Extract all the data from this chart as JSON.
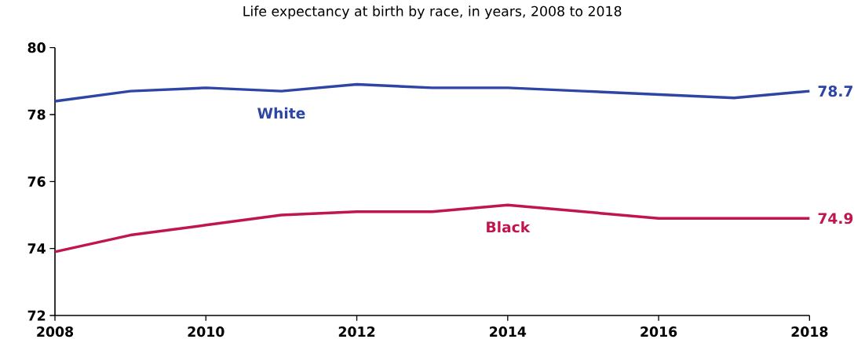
{
  "chart_data": {
    "type": "line",
    "title": "Life expectancy at birth by race, in years, 2008 to 2018",
    "x": [
      2008,
      2009,
      2010,
      2011,
      2012,
      2013,
      2014,
      2015,
      2016,
      2017,
      2018
    ],
    "series": [
      {
        "name": "White",
        "color": "#2e45a5",
        "values": [
          78.4,
          78.7,
          78.8,
          78.7,
          78.9,
          78.8,
          78.8,
          78.7,
          78.6,
          78.5,
          78.7
        ],
        "value_labels": [
          null,
          null,
          null,
          null,
          null,
          null,
          null,
          null,
          null,
          null,
          "78.7"
        ]
      },
      {
        "name": "Black",
        "color": "#c0164e",
        "values": [
          73.9,
          74.4,
          74.7,
          75.0,
          75.1,
          75.1,
          75.3,
          75.1,
          74.9,
          74.9,
          74.9
        ],
        "value_labels": [
          null,
          null,
          null,
          null,
          null,
          null,
          null,
          null,
          null,
          null,
          "74.9"
        ]
      }
    ],
    "xlim": [
      2008,
      2018
    ],
    "xticks": [
      2008,
      2010,
      2012,
      2014,
      2016,
      2018
    ],
    "ylim": [
      72,
      80
    ],
    "yticks": [
      72,
      74,
      76,
      78,
      80
    ],
    "grid": false,
    "legend": false,
    "marker": "none",
    "line_style": "solid"
  }
}
